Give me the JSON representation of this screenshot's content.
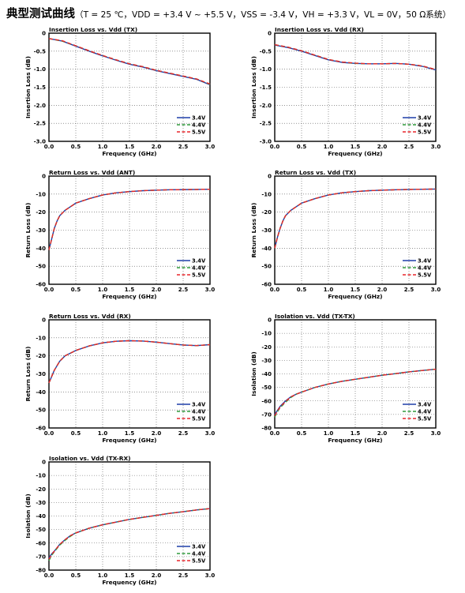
{
  "header": {
    "title": "典型测试曲线",
    "conditions": "（T = 25 ℃，VDD = +3.4 V ~ +5.5 V，VSS = -3.4 V，VH = +3.3 V，VL = 0V，50 Ω系统）"
  },
  "colors": {
    "v34": "#1f3fa8",
    "v44": "#2e9a3a",
    "v55": "#e8252a"
  },
  "chart_data": [
    {
      "type": "line",
      "title": "Insertion Loss vs. Vdd  (TX)",
      "xlabel": "Frequency  (GHz)",
      "ylabel": "Insertion Loss  (dB)",
      "xlim": [
        0,
        3
      ],
      "ylim": [
        -3,
        0
      ],
      "xticks": [
        "0.0",
        "0.5",
        "1.0",
        "1.5",
        "2.0",
        "2.5",
        "3.0"
      ],
      "yticks": [
        "0",
        "-0.5",
        "-1.0",
        "-1.5",
        "-2.0",
        "-2.5",
        "-3.0"
      ],
      "grid": true,
      "legend": "bottom-right",
      "x": [
        0,
        0.25,
        0.5,
        0.75,
        1.0,
        1.25,
        1.5,
        1.75,
        2.0,
        2.25,
        2.5,
        2.75,
        3.0
      ],
      "series": [
        {
          "name": "3.4V",
          "values": [
            -0.15,
            -0.22,
            -0.36,
            -0.5,
            -0.63,
            -0.75,
            -0.86,
            -0.94,
            -1.04,
            -1.12,
            -1.2,
            -1.28,
            -1.43
          ]
        },
        {
          "name": "4.4V",
          "values": [
            -0.15,
            -0.22,
            -0.35,
            -0.49,
            -0.62,
            -0.74,
            -0.85,
            -0.93,
            -1.03,
            -1.11,
            -1.19,
            -1.27,
            -1.42
          ]
        },
        {
          "name": "5.5V",
          "values": [
            -0.15,
            -0.21,
            -0.35,
            -0.49,
            -0.62,
            -0.74,
            -0.85,
            -0.93,
            -1.03,
            -1.11,
            -1.19,
            -1.27,
            -1.41
          ]
        }
      ]
    },
    {
      "type": "line",
      "title": "Insertion Loss vs. Vdd  (RX)",
      "xlabel": "Frequency  (GHz)",
      "ylabel": "Insertion Loss  (dB)",
      "xlim": [
        0,
        3
      ],
      "ylim": [
        -3,
        0
      ],
      "xticks": [
        "0.0",
        "0.5",
        "1.0",
        "1.5",
        "2.0",
        "2.5",
        "3.0"
      ],
      "yticks": [
        "0",
        "-0.5",
        "-1.0",
        "-1.5",
        "-2.0",
        "-2.5",
        "-3.0"
      ],
      "grid": true,
      "legend": "bottom-right",
      "x": [
        0,
        0.25,
        0.5,
        0.75,
        1.0,
        1.25,
        1.5,
        1.75,
        2.0,
        2.25,
        2.5,
        2.75,
        3.0
      ],
      "series": [
        {
          "name": "3.4V",
          "values": [
            -0.33,
            -0.4,
            -0.5,
            -0.62,
            -0.74,
            -0.81,
            -0.84,
            -0.85,
            -0.85,
            -0.84,
            -0.86,
            -0.92,
            -1.02
          ]
        },
        {
          "name": "4.4V",
          "values": [
            -0.32,
            -0.39,
            -0.49,
            -0.61,
            -0.73,
            -0.8,
            -0.84,
            -0.85,
            -0.85,
            -0.84,
            -0.86,
            -0.91,
            -1.01
          ]
        },
        {
          "name": "5.5V",
          "values": [
            -0.32,
            -0.39,
            -0.49,
            -0.61,
            -0.73,
            -0.8,
            -0.83,
            -0.85,
            -0.85,
            -0.84,
            -0.86,
            -0.91,
            -1.01
          ]
        }
      ]
    },
    {
      "type": "line",
      "title": "Return Loss vs. Vdd  (ANT)",
      "xlabel": "Frequency  (GHz)",
      "ylabel": "Return Loss  (dB)",
      "xlim": [
        0,
        3
      ],
      "ylim": [
        -60,
        0
      ],
      "xticks": [
        "0.0",
        "0.5",
        "1.0",
        "1.5",
        "2.0",
        "2.5",
        "3.0"
      ],
      "yticks": [
        "0",
        "-10",
        "-20",
        "-30",
        "-40",
        "-50",
        "-60"
      ],
      "grid": true,
      "legend": "bottom-right",
      "x": [
        0,
        0.05,
        0.1,
        0.15,
        0.2,
        0.3,
        0.4,
        0.5,
        0.75,
        1.0,
        1.25,
        1.5,
        1.75,
        2.0,
        2.25,
        2.5,
        2.75,
        3.0
      ],
      "series": [
        {
          "name": "3.4V",
          "values": [
            -41,
            -35,
            -29,
            -25,
            -22,
            -19,
            -17,
            -15,
            -12.5,
            -10.5,
            -9.3,
            -8.6,
            -8.1,
            -7.8,
            -7.6,
            -7.5,
            -7.4,
            -7.3
          ]
        },
        {
          "name": "4.4V",
          "values": [
            -41,
            -35,
            -29,
            -25,
            -22,
            -19,
            -17,
            -15,
            -12.5,
            -10.5,
            -9.3,
            -8.6,
            -8.1,
            -7.8,
            -7.6,
            -7.5,
            -7.4,
            -7.3
          ]
        },
        {
          "name": "5.5V",
          "values": [
            -41,
            -35,
            -29,
            -25,
            -22,
            -19,
            -17,
            -15,
            -12.5,
            -10.5,
            -9.3,
            -8.6,
            -8.1,
            -7.8,
            -7.6,
            -7.5,
            -7.4,
            -7.3
          ]
        }
      ]
    },
    {
      "type": "line",
      "title": "Return Loss vs. Vdd  (TX)",
      "xlabel": "Frequency  (GHz)",
      "ylabel": "Return Loss  (dB)",
      "xlim": [
        0,
        3
      ],
      "ylim": [
        -60,
        0
      ],
      "xticks": [
        "0.0",
        "0.5",
        "1.0",
        "1.5",
        "2.0",
        "2.5",
        "3.0"
      ],
      "yticks": [
        "0",
        "-10",
        "-20",
        "-30",
        "-40",
        "-50",
        "-60"
      ],
      "grid": true,
      "legend": "bottom-right",
      "x": [
        0,
        0.05,
        0.1,
        0.15,
        0.2,
        0.3,
        0.4,
        0.5,
        0.75,
        1.0,
        1.25,
        1.5,
        1.75,
        2.0,
        2.25,
        2.5,
        2.75,
        3.0
      ],
      "series": [
        {
          "name": "3.4V",
          "values": [
            -40,
            -34,
            -29,
            -25,
            -22,
            -19,
            -17,
            -15,
            -12.5,
            -10.5,
            -9.3,
            -8.6,
            -8.1,
            -7.8,
            -7.6,
            -7.4,
            -7.3,
            -7.2
          ]
        },
        {
          "name": "4.4V",
          "values": [
            -40,
            -34,
            -29,
            -25,
            -22,
            -19,
            -17,
            -15,
            -12.5,
            -10.5,
            -9.3,
            -8.6,
            -8.1,
            -7.8,
            -7.6,
            -7.4,
            -7.3,
            -7.2
          ]
        },
        {
          "name": "5.5V",
          "values": [
            -40,
            -34,
            -29,
            -25,
            -22,
            -19,
            -17,
            -15,
            -12.5,
            -10.5,
            -9.3,
            -8.6,
            -8.1,
            -7.8,
            -7.6,
            -7.4,
            -7.3,
            -7.2
          ]
        }
      ]
    },
    {
      "type": "line",
      "title": "Return Loss vs. Vdd  (RX)",
      "xlabel": "Frequency  (GHz)",
      "ylabel": "Return Loss  (dB)",
      "xlim": [
        0,
        3
      ],
      "ylim": [
        -60,
        0
      ],
      "xticks": [
        "0.0",
        "0.5",
        "1.0",
        "1.5",
        "2.0",
        "2.5",
        "3.0"
      ],
      "yticks": [
        "0",
        "-10",
        "-20",
        "-30",
        "-40",
        "-50",
        "-60"
      ],
      "grid": true,
      "legend": "bottom-right",
      "x": [
        0,
        0.1,
        0.2,
        0.3,
        0.5,
        0.75,
        1.0,
        1.25,
        1.5,
        1.75,
        2.0,
        2.25,
        2.5,
        2.75,
        3.0
      ],
      "series": [
        {
          "name": "3.4V",
          "values": [
            -35,
            -28,
            -23,
            -20,
            -17,
            -14.5,
            -12.8,
            -11.9,
            -11.6,
            -11.8,
            -12.4,
            -13.2,
            -14,
            -14.3,
            -13.8
          ]
        },
        {
          "name": "4.4V",
          "values": [
            -35,
            -28,
            -23,
            -20,
            -17,
            -14.5,
            -12.8,
            -11.9,
            -11.6,
            -11.8,
            -12.4,
            -13.2,
            -14,
            -14.3,
            -13.8
          ]
        },
        {
          "name": "5.5V",
          "values": [
            -35,
            -28,
            -23,
            -20,
            -17,
            -14.5,
            -12.8,
            -11.9,
            -11.6,
            -11.8,
            -12.4,
            -13.2,
            -14,
            -14.3,
            -13.8
          ]
        }
      ]
    },
    {
      "type": "line",
      "title": "Isolation vs. Vdd  (TX-TX)",
      "xlabel": "Frequency  (GHz)",
      "ylabel": "Isolation  (dB)",
      "xlim": [
        0,
        3
      ],
      "ylim": [
        -80,
        0
      ],
      "xticks": [
        "0.0",
        "0.5",
        "1.0",
        "1.5",
        "2.0",
        "2.5",
        "3.0"
      ],
      "yticks": [
        "0",
        "-10",
        "-20",
        "-30",
        "-40",
        "-50",
        "-60",
        "-70",
        "-80"
      ],
      "grid": true,
      "legend": "bottom-right",
      "x": [
        0,
        0.05,
        0.1,
        0.2,
        0.3,
        0.4,
        0.5,
        0.75,
        1.0,
        1.25,
        1.5,
        1.75,
        2.0,
        2.25,
        2.5,
        2.75,
        3.0
      ],
      "series": [
        {
          "name": "3.4V",
          "values": [
            -70,
            -67,
            -64,
            -60,
            -57,
            -55,
            -53.5,
            -50,
            -47.5,
            -45.5,
            -44,
            -42.5,
            -41,
            -39.8,
            -38.5,
            -37.5,
            -36.5
          ]
        },
        {
          "name": "4.4V",
          "values": [
            -72,
            -68,
            -65,
            -61,
            -57.5,
            -55,
            -53.5,
            -50,
            -47.5,
            -45.5,
            -44,
            -42.5,
            -41,
            -39.8,
            -38.5,
            -37.5,
            -36.5
          ]
        },
        {
          "name": "5.5V",
          "values": [
            -71,
            -67.5,
            -64.5,
            -60.5,
            -57,
            -55,
            -53.5,
            -50,
            -47.5,
            -45.5,
            -44,
            -42.5,
            -41,
            -39.8,
            -38.5,
            -37.5,
            -36.5
          ]
        }
      ]
    },
    {
      "type": "line",
      "title": "Isolation vs. Vdd  (TX-RX)",
      "xlabel": "Frequency  (GHz)",
      "ylabel": "Isolation  (dB)",
      "xlim": [
        0,
        3
      ],
      "ylim": [
        -80,
        0
      ],
      "xticks": [
        "0.0",
        "0.5",
        "1.0",
        "1.5",
        "2.0",
        "2.5",
        "3.0"
      ],
      "yticks": [
        "0",
        "-10",
        "-20",
        "-30",
        "-40",
        "-50",
        "-60",
        "-70",
        "-80"
      ],
      "grid": true,
      "legend": "bottom-right",
      "x": [
        0,
        0.05,
        0.1,
        0.2,
        0.3,
        0.4,
        0.5,
        0.75,
        1.0,
        1.25,
        1.5,
        1.75,
        2.0,
        2.25,
        2.5,
        2.75,
        3.0
      ],
      "series": [
        {
          "name": "3.4V",
          "values": [
            -71,
            -68,
            -66,
            -61,
            -57.5,
            -54.5,
            -52.5,
            -49,
            -46.5,
            -44.5,
            -42.5,
            -41,
            -39.5,
            -38,
            -36.8,
            -35.5,
            -34.5
          ]
        },
        {
          "name": "4.4V",
          "values": [
            -73,
            -69,
            -66.5,
            -61.5,
            -58,
            -55,
            -52.5,
            -49,
            -46.5,
            -44.5,
            -42.5,
            -41,
            -39.5,
            -38,
            -36.8,
            -35.5,
            -34.5
          ]
        },
        {
          "name": "5.5V",
          "values": [
            -72,
            -68.5,
            -66,
            -61,
            -57.5,
            -54.5,
            -52.5,
            -49,
            -46.5,
            -44.5,
            -42.5,
            -41,
            -39.5,
            -38,
            -36.8,
            -35.5,
            -34.5
          ]
        }
      ]
    }
  ]
}
